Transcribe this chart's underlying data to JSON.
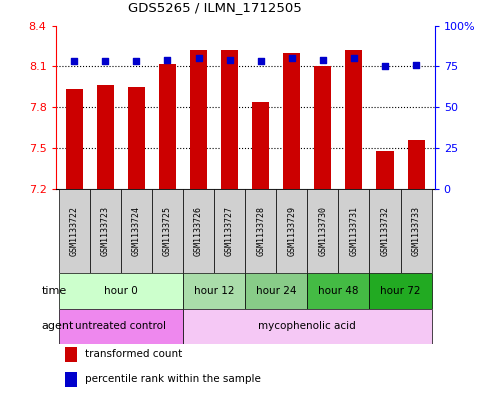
{
  "title": "GDS5265 / ILMN_1712505",
  "samples": [
    "GSM1133722",
    "GSM1133723",
    "GSM1133724",
    "GSM1133725",
    "GSM1133726",
    "GSM1133727",
    "GSM1133728",
    "GSM1133729",
    "GSM1133730",
    "GSM1133731",
    "GSM1133732",
    "GSM1133733"
  ],
  "bar_values": [
    7.93,
    7.96,
    7.95,
    8.12,
    8.22,
    8.22,
    7.84,
    8.2,
    8.1,
    8.22,
    7.48,
    7.56
  ],
  "dot_values": [
    78,
    78,
    78,
    79,
    80,
    79,
    78,
    80,
    79,
    80,
    75,
    76
  ],
  "ylim_left": [
    7.2,
    8.4
  ],
  "ylim_right": [
    0,
    100
  ],
  "yticks_left": [
    7.2,
    7.5,
    7.8,
    8.1,
    8.4
  ],
  "yticks_right": [
    0,
    25,
    50,
    75,
    100
  ],
  "ytick_labels_right": [
    "0",
    "25",
    "50",
    "75",
    "100%"
  ],
  "bar_color": "#cc0000",
  "dot_color": "#0000cc",
  "bar_width": 0.55,
  "time_groups": [
    {
      "label": "hour 0",
      "start": 0,
      "end": 3,
      "color": "#ccffcc"
    },
    {
      "label": "hour 12",
      "start": 4,
      "end": 5,
      "color": "#aaddaa"
    },
    {
      "label": "hour 24",
      "start": 6,
      "end": 7,
      "color": "#88cc88"
    },
    {
      "label": "hour 48",
      "start": 8,
      "end": 9,
      "color": "#44bb44"
    },
    {
      "label": "hour 72",
      "start": 10,
      "end": 11,
      "color": "#22aa22"
    }
  ],
  "agent_groups": [
    {
      "label": "untreated control",
      "start": 0,
      "end": 3,
      "color": "#ee88ee"
    },
    {
      "label": "mycophenolic acid",
      "start": 4,
      "end": 11,
      "color": "#f5c8f5"
    }
  ],
  "legend_items": [
    {
      "label": "transformed count",
      "color": "#cc0000"
    },
    {
      "label": "percentile rank within the sample",
      "color": "#0000cc"
    }
  ]
}
